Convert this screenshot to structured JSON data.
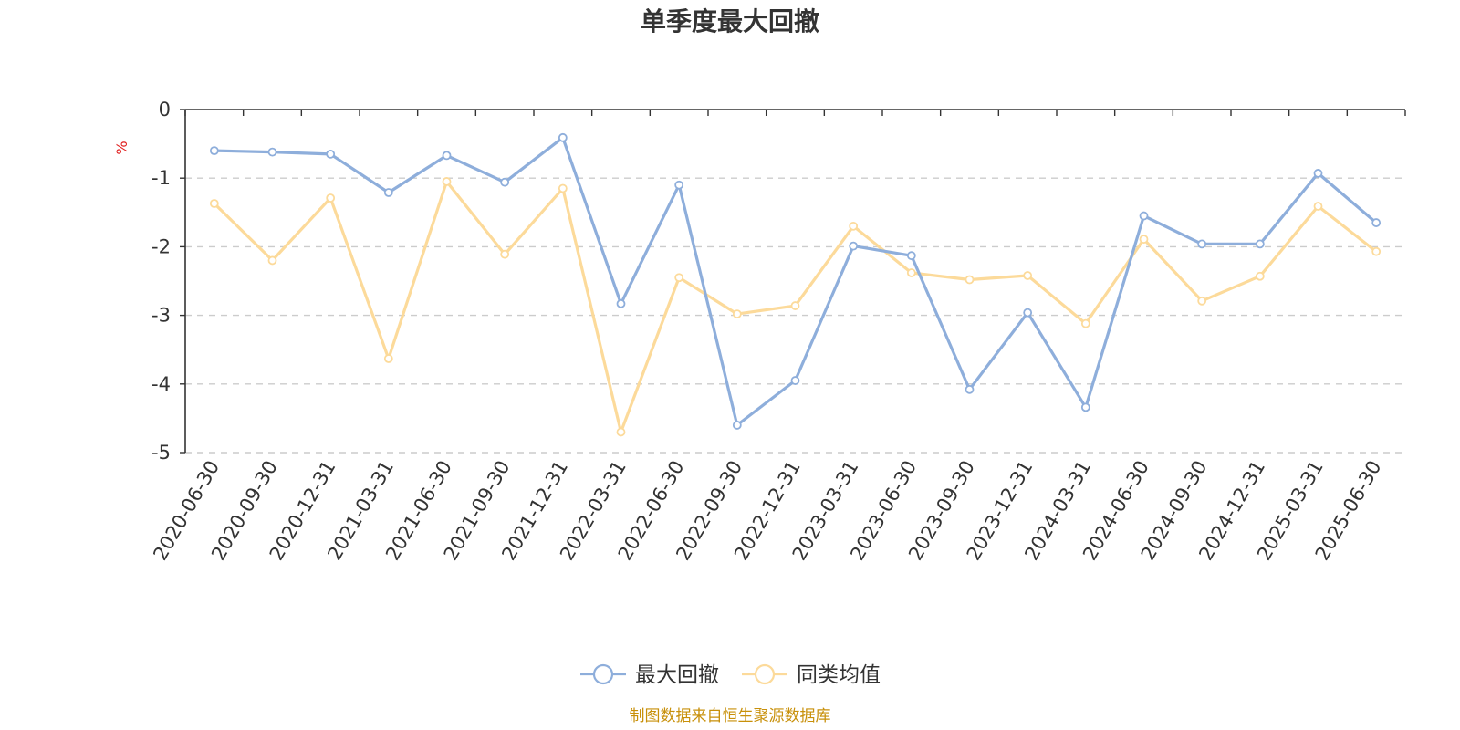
{
  "chart_data": {
    "type": "line",
    "title": "单季度最大回撤",
    "ylabel": "%",
    "xlabel": "",
    "ylim": [
      -5,
      0
    ],
    "yticks": [
      0,
      -1,
      -2,
      -3,
      -4,
      -5
    ],
    "ytick_labels": [
      "0",
      "-1",
      "-2",
      "-3",
      "-4",
      "-5"
    ],
    "grid": true,
    "legend_position": "bottom-center",
    "categories": [
      "2020-06-30",
      "2020-09-30",
      "2020-12-31",
      "2021-03-31",
      "2021-06-30",
      "2021-09-30",
      "2021-12-31",
      "2022-03-31",
      "2022-06-30",
      "2022-09-30",
      "2022-12-31",
      "2023-03-31",
      "2023-06-30",
      "2023-09-30",
      "2023-12-31",
      "2024-03-31",
      "2024-06-30",
      "2024-09-30",
      "2024-12-31",
      "2025-03-31",
      "2025-06-30"
    ],
    "series": [
      {
        "name": "最大回撤",
        "color": "#8eaedb",
        "values": [
          -0.6,
          -0.62,
          -0.65,
          -1.21,
          -0.67,
          -1.06,
          -0.41,
          -2.83,
          -1.1,
          -4.6,
          -3.95,
          -1.99,
          -2.13,
          -4.08,
          -2.96,
          -4.34,
          -1.55,
          -1.96,
          -1.96,
          -0.93,
          -1.65
        ]
      },
      {
        "name": "同类均值",
        "color": "#fcda9a",
        "values": [
          -1.37,
          -2.2,
          -1.29,
          -3.63,
          -1.05,
          -2.11,
          -1.15,
          -4.7,
          -2.45,
          -2.98,
          -2.86,
          -1.7,
          -2.38,
          -2.48,
          -2.42,
          -3.12,
          -1.89,
          -2.79,
          -2.43,
          -1.41,
          -2.07
        ]
      }
    ]
  },
  "source_note": "制图数据来自恒生聚源数据库"
}
